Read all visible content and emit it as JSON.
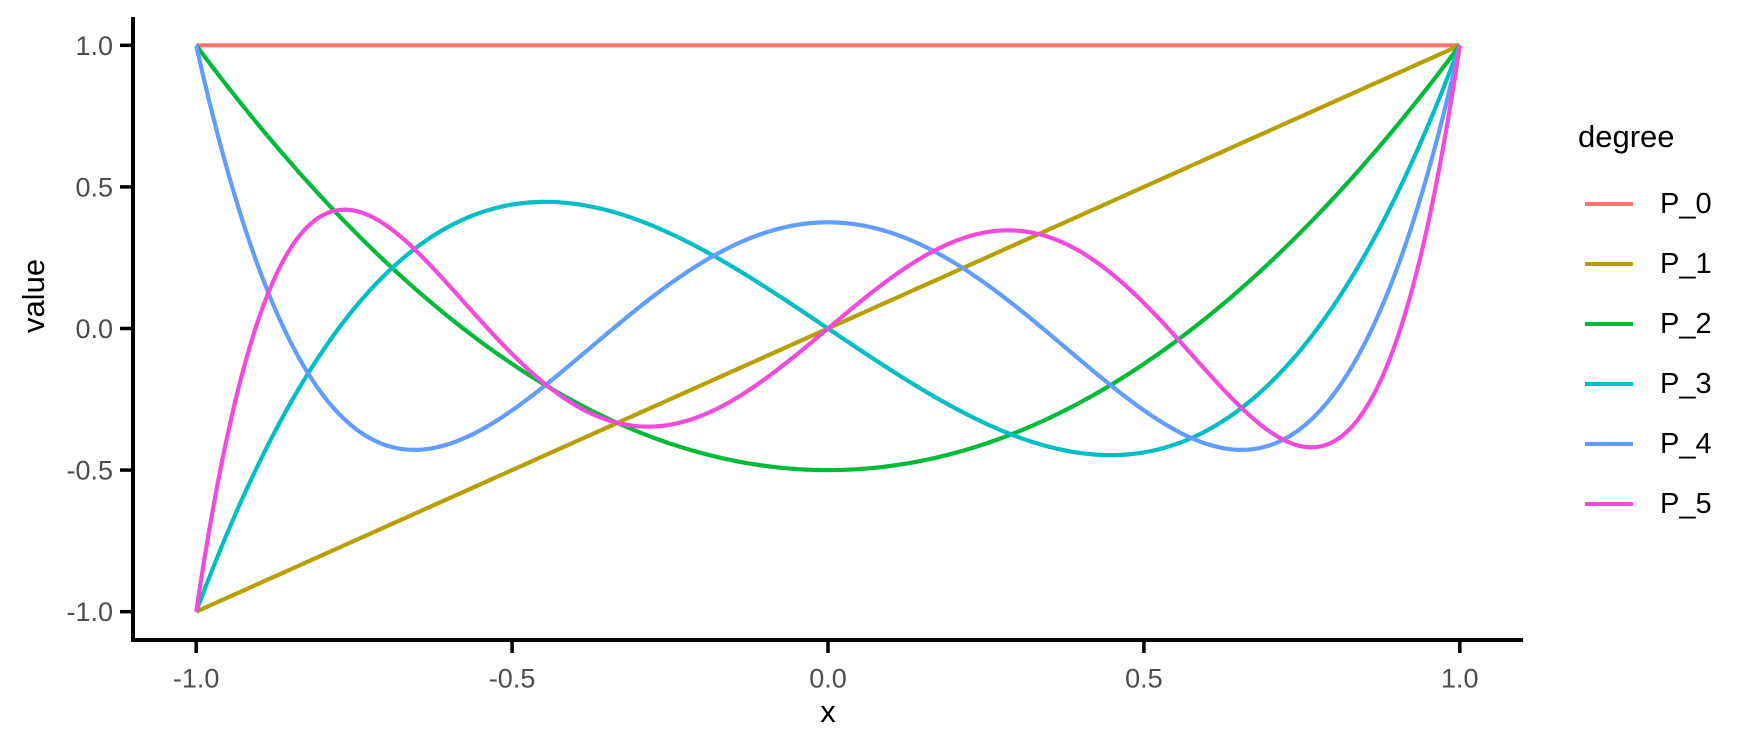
{
  "figure": {
    "background": "#FFFFFF",
    "axis_color": "#000000",
    "tick_label_color": "#4D4D4D",
    "axis_title_color": "#000000"
  },
  "chart_data": {
    "type": "line",
    "title": "",
    "xlabel": "x",
    "ylabel": "value",
    "xlim": [
      -1,
      1
    ],
    "ylim": [
      -1,
      1
    ],
    "x_ticks": [
      -1.0,
      -0.5,
      0.0,
      0.5,
      1.0
    ],
    "y_ticks": [
      -1.0,
      -0.5,
      0.0,
      0.5,
      1.0
    ],
    "grid": false,
    "axis_expansion": 0.05,
    "legend": {
      "title": "degree",
      "position": "right"
    },
    "x": [
      -1,
      -0.9,
      -0.8,
      -0.7,
      -0.6,
      -0.5,
      -0.4,
      -0.3,
      -0.2,
      -0.1,
      0,
      0.1,
      0.2,
      0.3,
      0.4,
      0.5,
      0.6,
      0.7,
      0.8,
      0.9,
      1
    ],
    "series": [
      {
        "name": "P_0",
        "color": "#F8766D",
        "coefficients": [
          1
        ],
        "values": [
          1,
          1,
          1,
          1,
          1,
          1,
          1,
          1,
          1,
          1,
          1,
          1,
          1,
          1,
          1,
          1,
          1,
          1,
          1,
          1,
          1
        ]
      },
      {
        "name": "P_1",
        "color": "#B79F00",
        "coefficients": [
          0,
          1
        ],
        "values": [
          -1,
          -0.9,
          -0.8,
          -0.7,
          -0.6,
          -0.5,
          -0.4,
          -0.3,
          -0.2,
          -0.1,
          0,
          0.1,
          0.2,
          0.3,
          0.4,
          0.5,
          0.6,
          0.7,
          0.8,
          0.9,
          1
        ]
      },
      {
        "name": "P_2",
        "color": "#00BA38",
        "coefficients": [
          -0.5,
          0,
          1.5
        ],
        "values": [
          1,
          0.715,
          0.46,
          0.235,
          0.04,
          -0.125,
          -0.26,
          -0.365,
          -0.44,
          -0.485,
          -0.5,
          -0.485,
          -0.44,
          -0.365,
          -0.26,
          -0.125,
          0.04,
          0.235,
          0.46,
          0.715,
          1
        ]
      },
      {
        "name": "P_3",
        "color": "#00BFC4",
        "coefficients": [
          0,
          -1.5,
          0,
          2.5
        ],
        "values": [
          -1,
          -0.4725,
          -0.08,
          0.1925,
          0.36,
          0.4375,
          0.44,
          0.3825,
          0.28,
          0.1475,
          0,
          -0.1475,
          -0.28,
          -0.3825,
          -0.44,
          -0.4375,
          -0.36,
          -0.1925,
          0.08,
          0.4725,
          1
        ]
      },
      {
        "name": "P_4",
        "color": "#619CFF",
        "coefficients": [
          0.375,
          0,
          -3.75,
          0,
          4.375
        ],
        "values": [
          1,
          0.2079,
          -0.233,
          -0.4121,
          -0.408,
          -0.2891,
          -0.113,
          0.0729,
          0.232,
          0.3379,
          0.375,
          0.3379,
          0.232,
          0.0729,
          -0.113,
          -0.2891,
          -0.408,
          -0.4121,
          -0.233,
          0.2079,
          1
        ]
      },
      {
        "name": "P_5",
        "color": "#F24BDC",
        "coefficients": [
          0,
          1.875,
          0,
          -8.75,
          0,
          7.875
        ],
        "values": [
          -1,
          0.0411,
          0.3995,
          0.3652,
          0.1526,
          -0.0898,
          -0.2706,
          -0.3454,
          -0.3075,
          -0.1788,
          0,
          0.1788,
          0.3075,
          0.3454,
          0.2706,
          0.0898,
          -0.1526,
          -0.3652,
          -0.3995,
          -0.0411,
          1
        ]
      }
    ]
  }
}
